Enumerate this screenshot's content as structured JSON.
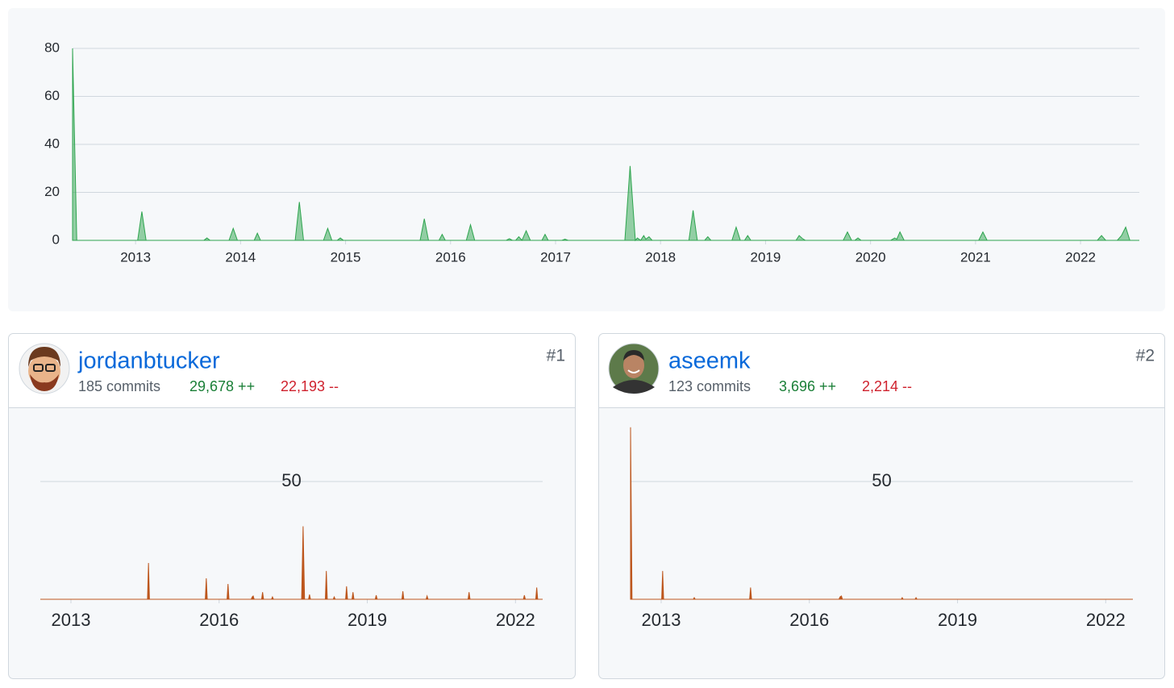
{
  "chart_data": [
    {
      "type": "area",
      "color": "#2da44e",
      "x": [
        2012.4,
        2012.44,
        2013.02,
        2013.06,
        2013.1,
        2013.65,
        2013.68,
        2013.71,
        2013.89,
        2013.93,
        2013.97,
        2014.13,
        2014.16,
        2014.19,
        2014.52,
        2014.56,
        2014.6,
        2014.79,
        2014.83,
        2014.87,
        2014.92,
        2014.95,
        2014.98,
        2015.71,
        2015.75,
        2015.79,
        2015.89,
        2015.92,
        2015.95,
        2016.15,
        2016.19,
        2016.23,
        2016.53,
        2016.56,
        2016.59,
        2016.62,
        2016.65,
        2016.68,
        2016.72,
        2016.76,
        2016.87,
        2016.9,
        2016.93,
        2017.06,
        2017.09,
        2017.12,
        2017.66,
        2017.71,
        2017.76,
        2017.78,
        2017.81,
        2017.84,
        2017.86,
        2017.89,
        2017.92,
        2018.27,
        2018.31,
        2018.35,
        2018.42,
        2018.45,
        2018.48,
        2018.68,
        2018.72,
        2018.76,
        2018.8,
        2018.83,
        2018.86,
        2019.29,
        2019.32,
        2019.35,
        2019.38,
        2019.74,
        2019.78,
        2019.82,
        2019.85,
        2019.88,
        2019.91,
        2020.19,
        2020.23,
        2020.25,
        2020.28,
        2020.32,
        2021.03,
        2021.07,
        2021.11,
        2022.16,
        2022.2,
        2022.24,
        2022.35,
        2022.39,
        2022.43,
        2022.47,
        2022.56
      ],
      "values": [
        80,
        0,
        0,
        12,
        0,
        0,
        1,
        0,
        0,
        5,
        0,
        0,
        3,
        0,
        0,
        16,
        0,
        0,
        5,
        0,
        0,
        1,
        0,
        0,
        9,
        0,
        0,
        2.5,
        0,
        0,
        6.5,
        0,
        0,
        0.7,
        0,
        0,
        1.5,
        0,
        4,
        0,
        0,
        2.5,
        0,
        0,
        0.5,
        0,
        0,
        31,
        0,
        1,
        0,
        2,
        0.5,
        1.5,
        0,
        0,
        12.5,
        0,
        0,
        1.5,
        0,
        0,
        5.5,
        0,
        0,
        2,
        0,
        0,
        2,
        0.8,
        0,
        0,
        3.5,
        0,
        0,
        1,
        0,
        0,
        1,
        0.5,
        3.5,
        0,
        0,
        3.5,
        0,
        0,
        2,
        0,
        0,
        2,
        5.5,
        0,
        0
      ],
      "xlim": [
        2012.4,
        2022.56
      ],
      "ylim": [
        0,
        82
      ],
      "xticks": [
        2013,
        2014,
        2015,
        2016,
        2017,
        2018,
        2019,
        2020,
        2021,
        2022
      ],
      "yticks": [
        0,
        20,
        40,
        60,
        80
      ],
      "grid": true
    },
    {
      "type": "area",
      "color": "#bd561d",
      "x": [
        2012.38,
        2014.55,
        2014.57,
        2014.59,
        2015.72,
        2015.74,
        2015.76,
        2016.16,
        2016.18,
        2016.2,
        2016.65,
        2016.67,
        2016.69,
        2016.71,
        2016.86,
        2016.88,
        2016.9,
        2017.06,
        2017.08,
        2017.1,
        2017.67,
        2017.7,
        2017.73,
        2017.81,
        2017.83,
        2017.85,
        2018.15,
        2018.17,
        2018.19,
        2018.31,
        2018.33,
        2018.35,
        2018.56,
        2018.58,
        2018.6,
        2018.69,
        2018.71,
        2018.73,
        2019.16,
        2019.18,
        2019.2,
        2019.7,
        2019.72,
        2019.74,
        2020.19,
        2020.21,
        2020.23,
        2021.04,
        2021.06,
        2021.08,
        2022.16,
        2022.18,
        2022.2,
        2022.41,
        2022.43,
        2022.45,
        2022.55
      ],
      "values": [
        0,
        0,
        15.4,
        0,
        0,
        8.9,
        0,
        0,
        6.5,
        0,
        0,
        1,
        1.4,
        0,
        0,
        3,
        0,
        0,
        1,
        0,
        0,
        31,
        0,
        0,
        2,
        0,
        0,
        12,
        0,
        0,
        1,
        0,
        0,
        5.5,
        0,
        0,
        3,
        0,
        0,
        1.7,
        0,
        0,
        3.4,
        0,
        0,
        1.4,
        0,
        0,
        3,
        0,
        0,
        1.7,
        0,
        0,
        5,
        0,
        0
      ],
      "xlim": [
        2012.38,
        2022.55
      ],
      "ylim": [
        0,
        76
      ],
      "xticks": [
        2013,
        2016,
        2019,
        2022
      ],
      "yticks": [
        50
      ],
      "grid": true
    },
    {
      "type": "area",
      "color": "#bd561d",
      "x": [
        2012.38,
        2012.41,
        2013.01,
        2013.03,
        2013.05,
        2013.65,
        2013.67,
        2013.69,
        2014.79,
        2014.81,
        2014.83,
        2016.6,
        2016.62,
        2016.65,
        2016.67,
        2017.86,
        2017.88,
        2017.9,
        2018.14,
        2018.16,
        2018.18,
        2022.55
      ],
      "values": [
        73,
        0,
        0,
        12,
        0,
        0,
        0.7,
        0,
        0,
        5,
        0,
        0,
        1,
        1.4,
        0,
        0,
        0.7,
        0,
        0,
        0.7,
        0,
        0
      ],
      "xlim": [
        2012.38,
        2022.55
      ],
      "ylim": [
        0,
        76
      ],
      "xticks": [
        2013,
        2016,
        2019,
        2022
      ],
      "yticks": [
        50
      ],
      "grid": true
    }
  ],
  "contributors": [
    {
      "name": "jordanbtucker",
      "commits": "185 commits",
      "additions": "29,678 ++",
      "deletions": "22,193 --",
      "rank": "#1"
    },
    {
      "name": "aseemk",
      "commits": "123 commits",
      "additions": "3,696 ++",
      "deletions": "2,214 --",
      "rank": "#2"
    }
  ]
}
